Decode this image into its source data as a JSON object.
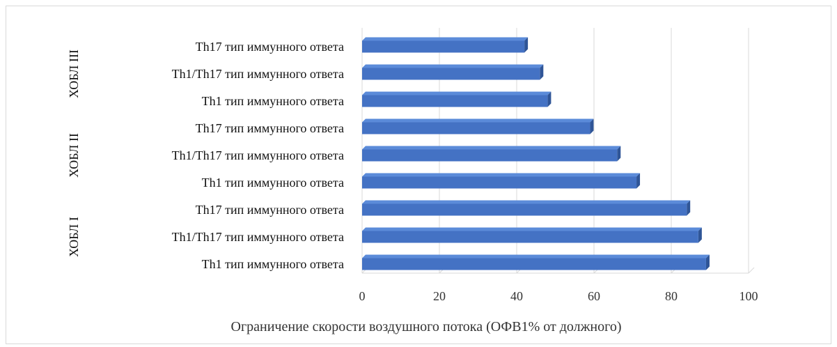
{
  "chart_data": {
    "type": "bar",
    "orientation": "horizontal",
    "xlabel": "Ограничение скорости воздушного потока (ОФВ1% от должного)",
    "xlim": [
      0,
      100
    ],
    "xticks": [
      0,
      20,
      40,
      60,
      80,
      100
    ],
    "grid": true,
    "bar_color": "#4472C4",
    "groups": [
      {
        "label": "ХОБЛ III",
        "items": [
          {
            "category": "Th17 тип иммунного ответа",
            "value": 42
          },
          {
            "category": "Th1/Th17 тип иммунного ответа",
            "value": 46
          },
          {
            "category": "Th1 тип иммунного ответа",
            "value": 48
          }
        ]
      },
      {
        "label": "ХОБЛ II",
        "items": [
          {
            "category": "Th17 тип иммунного ответа",
            "value": 59
          },
          {
            "category": "Th1/Th17 тип иммунного ответа",
            "value": 66
          },
          {
            "category": "Th1 тип иммунного ответа",
            "value": 71
          }
        ]
      },
      {
        "label": "ХОБЛ I",
        "items": [
          {
            "category": "Th17 тип иммунного ответа",
            "value": 84
          },
          {
            "category": "Th1/Th17 тип иммунного ответа",
            "value": 87
          },
          {
            "category": "Th1 тип иммунного ответа",
            "value": 89
          }
        ]
      }
    ]
  }
}
